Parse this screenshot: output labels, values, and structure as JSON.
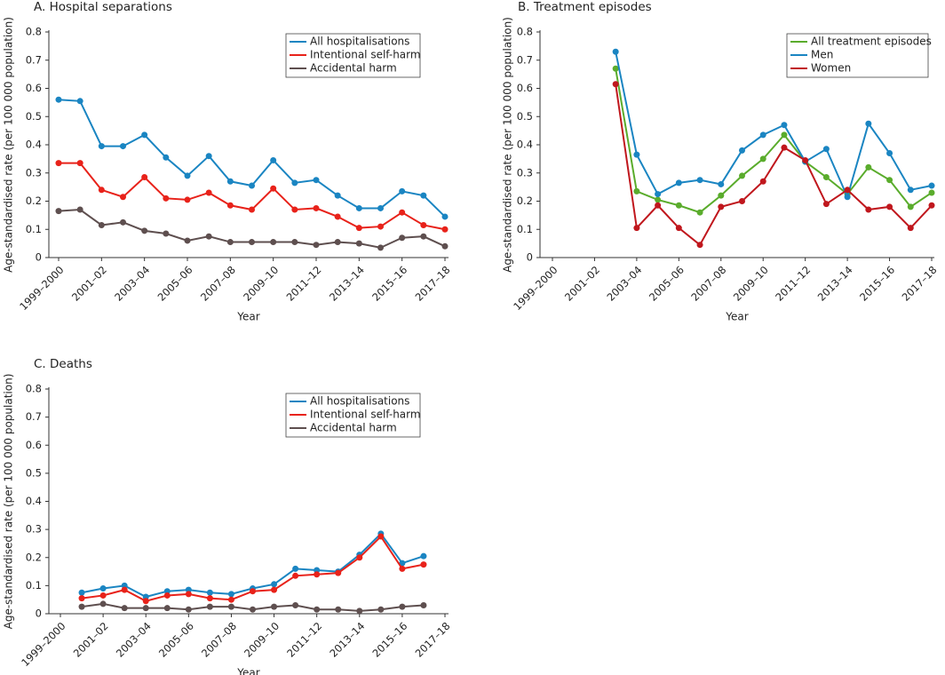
{
  "chart_data": [
    {
      "type": "line",
      "title": "A. Hospital separations",
      "x_label": "Year",
      "y_label": "Age-standardised rate (per 100 000 population)",
      "categories": [
        "1999–2000",
        null,
        "2001–02",
        null,
        "2003–04",
        null,
        "2005–06",
        null,
        "2007–08",
        null,
        "2009–10",
        null,
        "2011–12",
        null,
        "2013–14",
        null,
        "2015–16",
        null,
        "2017–18"
      ],
      "ylim": [
        0,
        0.8
      ],
      "yticks": [
        0,
        0.1,
        0.2,
        0.3,
        0.4,
        0.5,
        0.6,
        0.7,
        0.8
      ],
      "legend": "upper right",
      "series": [
        {
          "name": "All hospitalisations",
          "color": "#1a85c2",
          "values": [
            0.56,
            0.555,
            0.395,
            0.395,
            0.435,
            0.355,
            0.29,
            0.36,
            0.27,
            0.255,
            0.345,
            0.265,
            0.275,
            0.22,
            0.175,
            0.175,
            0.235,
            0.22,
            0.145
          ]
        },
        {
          "name": "Intentional self-harm",
          "color": "#e8221a",
          "values": [
            0.335,
            0.335,
            0.24,
            0.215,
            0.285,
            0.21,
            0.205,
            0.23,
            0.185,
            0.17,
            0.245,
            0.17,
            0.175,
            0.145,
            0.105,
            0.11,
            0.16,
            0.115,
            0.1
          ]
        },
        {
          "name": "Accidental harm",
          "color": "#5e4f4f",
          "values": [
            0.165,
            0.17,
            0.115,
            0.125,
            0.095,
            0.085,
            0.06,
            0.075,
            0.055,
            0.055,
            0.055,
            0.055,
            0.045,
            0.055,
            0.05,
            0.035,
            0.07,
            0.075,
            0.04
          ]
        }
      ]
    },
    {
      "type": "line",
      "title": "B. Treatment episodes",
      "x_label": "Year",
      "y_label": "Age-standardised rate (per 100 000 population)",
      "categories": [
        "1999–2000",
        null,
        "2001–02",
        null,
        "2003–04",
        null,
        "2005–06",
        null,
        "2007–08",
        null,
        "2009–10",
        null,
        "2011–12",
        null,
        "2013–14",
        null,
        "2015–16",
        null,
        "2017–18"
      ],
      "ylim": [
        0,
        0.8
      ],
      "yticks": [
        0,
        0.1,
        0.2,
        0.3,
        0.4,
        0.5,
        0.6,
        0.7,
        0.8
      ],
      "legend": "upper right",
      "series": [
        {
          "name": "All treatment episodes",
          "color": "#5aac2c",
          "values": [
            null,
            null,
            null,
            0.67,
            0.235,
            0.205,
            0.185,
            0.16,
            0.22,
            0.29,
            0.35,
            0.435,
            0.34,
            0.285,
            0.225,
            0.32,
            0.275,
            0.18,
            0.23
          ]
        },
        {
          "name": "Men",
          "color": "#1a85c2",
          "values": [
            null,
            null,
            null,
            0.73,
            0.365,
            0.225,
            0.265,
            0.275,
            0.26,
            0.38,
            0.435,
            0.47,
            0.34,
            0.385,
            0.215,
            0.475,
            0.37,
            0.24,
            0.255
          ]
        },
        {
          "name": "Women",
          "color": "#c0171d",
          "values": [
            null,
            null,
            null,
            0.615,
            0.105,
            0.185,
            0.105,
            0.045,
            0.18,
            0.2,
            0.27,
            0.39,
            0.345,
            0.19,
            0.24,
            0.17,
            0.18,
            0.105,
            0.185
          ]
        }
      ]
    },
    {
      "type": "line",
      "title": "C. Deaths",
      "x_label": "Year",
      "y_label": "Age-standardised rate (per 100 000 population)",
      "categories": [
        "1999–2000",
        null,
        "2001–02",
        null,
        "2003–04",
        null,
        "2005–06",
        null,
        "2007–08",
        null,
        "2009–10",
        null,
        "2011–12",
        null,
        "2013–14",
        null,
        "2015–16",
        null,
        "2017–18"
      ],
      "ylim": [
        0,
        0.8
      ],
      "yticks": [
        0,
        0.1,
        0.2,
        0.3,
        0.4,
        0.5,
        0.6,
        0.7,
        0.8
      ],
      "legend": "upper right",
      "series": [
        {
          "name": "All hospitalisations",
          "color": "#1a85c2",
          "values": [
            null,
            0.075,
            0.09,
            0.1,
            0.06,
            0.08,
            0.085,
            0.075,
            0.07,
            0.09,
            0.105,
            0.16,
            0.155,
            0.15,
            0.21,
            0.285,
            0.18,
            0.205,
            null
          ]
        },
        {
          "name": "Intentional self-harm",
          "color": "#e8221a",
          "values": [
            null,
            0.055,
            0.065,
            0.085,
            0.045,
            0.065,
            0.07,
            0.055,
            0.05,
            0.08,
            0.085,
            0.135,
            0.14,
            0.145,
            0.2,
            0.275,
            0.16,
            0.175,
            null
          ]
        },
        {
          "name": "Accidental harm",
          "color": "#5e4f4f",
          "values": [
            null,
            0.025,
            0.035,
            0.02,
            0.02,
            0.02,
            0.015,
            0.025,
            0.025,
            0.015,
            0.025,
            0.03,
            0.015,
            0.015,
            0.01,
            0.015,
            0.025,
            0.03,
            null
          ]
        }
      ]
    }
  ]
}
